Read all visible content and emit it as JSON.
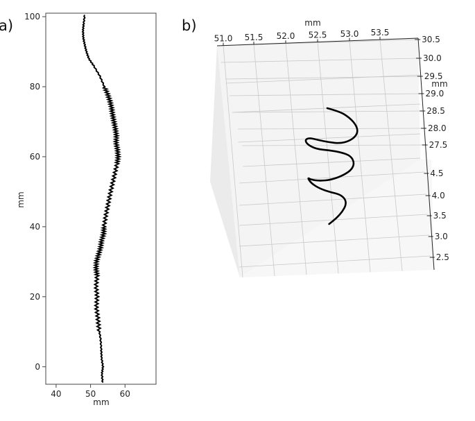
{
  "chart_data": [
    {
      "panel_label": "a)",
      "type": "line",
      "xlabel": "mm",
      "ylabel": "mm",
      "xlim": [
        37,
        69
      ],
      "ylim": [
        -5,
        101
      ],
      "xticks": [
        40,
        50,
        60
      ],
      "yticks": [
        0,
        20,
        40,
        60,
        80,
        100
      ],
      "grid": false,
      "series": [
        {
          "x": [
            53.5,
            53.3,
            53.6,
            53.2,
            53.1,
            52.9,
            52.4,
            52.1,
            51.7,
            51.9,
            51.6,
            51.9,
            51.6,
            51.7,
            52.3,
            52.9,
            53.2,
            53.8,
            53.9,
            54.4,
            55.0,
            55.6,
            56.3,
            57.0,
            57.7,
            58.0,
            57.8,
            57.4,
            57.5,
            57.2,
            56.8,
            56.4,
            56.1,
            55.6,
            54.9,
            54.0,
            52.7,
            50.9,
            49.5,
            48.8,
            48.3,
            47.9,
            47.8,
            48.0,
            48.3
          ],
          "y": [
            -4.5,
            -2,
            0,
            2.5,
            5,
            8,
            11,
            14,
            17,
            20,
            23,
            26,
            28,
            30,
            32,
            34,
            36,
            38,
            40,
            43,
            46,
            49,
            52,
            55,
            58,
            60,
            62,
            64,
            66,
            68,
            70,
            72,
            74,
            76,
            78,
            80,
            83,
            86,
            88,
            90,
            92,
            94,
            96,
            98,
            100.5
          ]
        }
      ]
    },
    {
      "panel_label": "b)",
      "type": "line3d",
      "xlabel": "mm",
      "ylabel": "mm",
      "xticks": [
        "51.0",
        "51.5",
        "52.0",
        "52.5",
        "53.0",
        "53.5"
      ],
      "yticks_upper": [
        "30.5",
        "30.0",
        "29.5",
        "29.0",
        "28.5",
        "28.0",
        "27.5"
      ],
      "zticks": [
        "4.5",
        "4.0",
        "3.5",
        "3.0",
        "2.5"
      ],
      "grid": true,
      "series": [
        {
          "x": [
            0,
            0.35,
            0.6,
            0.78,
            0.85,
            0.78,
            0.6,
            0.35,
            0.05,
            -0.25,
            -0.5,
            -0.62,
            -0.55,
            -0.3,
            0.05,
            0.4,
            0.65,
            0.75,
            0.68,
            0.45,
            0.12,
            -0.2,
            -0.45,
            -0.55,
            -0.45,
            -0.2,
            0.1,
            0.35,
            0.5,
            0.52,
            0.42,
            0.25,
            0.05
          ],
          "z": [
            1.0,
            0.97,
            0.92,
            0.86,
            0.8,
            0.75,
            0.71,
            0.69,
            0.7,
            0.72,
            0.74,
            0.72,
            0.68,
            0.64,
            0.63,
            0.61,
            0.58,
            0.52,
            0.46,
            0.41,
            0.37,
            0.36,
            0.37,
            0.39,
            0.34,
            0.29,
            0.26,
            0.24,
            0.2,
            0.15,
            0.09,
            0.03,
            -0.02
          ]
        }
      ]
    }
  ]
}
